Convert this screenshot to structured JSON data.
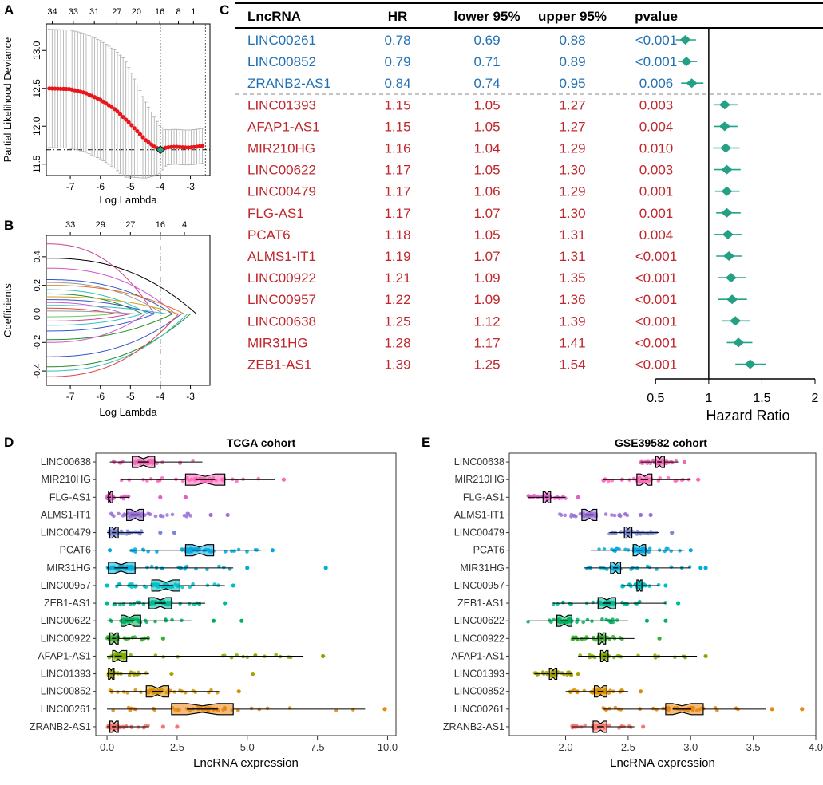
{
  "chart_data": [
    {
      "panel": "A",
      "type": "line",
      "panel_label": "A",
      "xlabel": "Log Lambda",
      "ylabel": "Partial Likelihood Deviance",
      "xlim": [
        -7.8,
        -2.35
      ],
      "ylim": [
        11.35,
        13.35
      ],
      "xticks": [
        -7,
        -6,
        -5,
        -4,
        -3
      ],
      "yticks": [
        11.5,
        12.0,
        12.5,
        13.0
      ],
      "top_ticks": [
        {
          "x": -7.6,
          "label": "34"
        },
        {
          "x": -6.9,
          "label": "33"
        },
        {
          "x": -6.2,
          "label": "31"
        },
        {
          "x": -5.45,
          "label": "27"
        },
        {
          "x": -4.8,
          "label": "20"
        },
        {
          "x": -4.02,
          "label": "16"
        },
        {
          "x": -3.4,
          "label": "8"
        },
        {
          "x": -2.9,
          "label": "1"
        }
      ],
      "vlines": [
        -4.0,
        -2.5
      ],
      "hline": 11.69,
      "optimum": {
        "x": -4.0,
        "y": 11.69
      },
      "curve": [
        [
          -7.75,
          12.5
        ],
        [
          -7.0,
          12.49
        ],
        [
          -6.5,
          12.44
        ],
        [
          -6.0,
          12.35
        ],
        [
          -5.5,
          12.22
        ],
        [
          -5.0,
          12.03
        ],
        [
          -4.5,
          11.82
        ],
        [
          -4.2,
          11.73
        ],
        [
          -4.0,
          11.69
        ],
        [
          -3.8,
          11.72
        ],
        [
          -3.5,
          11.73
        ],
        [
          -3.2,
          11.72
        ],
        [
          -3.0,
          11.72
        ],
        [
          -2.6,
          11.74
        ]
      ]
    },
    {
      "panel": "B",
      "type": "line",
      "panel_label": "B",
      "xlabel": "Log Lambda",
      "ylabel": "Coefficients",
      "xlim": [
        -7.8,
        -2.35
      ],
      "ylim": [
        -0.5,
        0.55
      ],
      "xticks": [
        -7,
        -6,
        -5,
        -4,
        -3
      ],
      "yticks": [
        -0.4,
        -0.2,
        0.0,
        0.2,
        0.4
      ],
      "top_ticks": [
        {
          "x": -7.0,
          "label": "33"
        },
        {
          "x": -6.0,
          "label": "29"
        },
        {
          "x": -5.0,
          "label": "27"
        },
        {
          "x": -4.0,
          "label": "16"
        },
        {
          "x": -3.2,
          "label": "4"
        }
      ],
      "vline": -4.0,
      "series": [
        {
          "start": 0.49,
          "end": -4.2,
          "color": "#d04090"
        },
        {
          "start": 0.39,
          "end": -2.8,
          "color": "#000000"
        },
        {
          "start": 0.32,
          "end": -3.5,
          "color": "#cc55cc"
        },
        {
          "start": 0.24,
          "end": -3.6,
          "color": "#3355cc"
        },
        {
          "start": 0.22,
          "end": -3.9,
          "color": "#999999"
        },
        {
          "start": 0.2,
          "end": -3.2,
          "color": "#e07020"
        },
        {
          "start": 0.17,
          "end": -4.4,
          "color": "#30c0c0"
        },
        {
          "start": 0.14,
          "end": -4.6,
          "color": "#228b22"
        },
        {
          "start": 0.12,
          "end": -3.4,
          "color": "#d4a020"
        },
        {
          "start": 0.1,
          "end": -4.2,
          "color": "#3355cc"
        },
        {
          "start": 0.08,
          "end": -5.2,
          "color": "#cc55cc"
        },
        {
          "start": 0.06,
          "end": -3.8,
          "color": "#30c0c0"
        },
        {
          "start": 0.04,
          "end": -5.5,
          "color": "#e04040"
        },
        {
          "start": 0.02,
          "end": -4.8,
          "color": "#999999"
        },
        {
          "start": -0.02,
          "end": -5.6,
          "color": "#66cc66"
        },
        {
          "start": -0.05,
          "end": -5.0,
          "color": "#d04090"
        },
        {
          "start": -0.08,
          "end": -4.6,
          "color": "#30c0c0"
        },
        {
          "start": -0.12,
          "end": -4.2,
          "color": "#3355cc"
        },
        {
          "start": -0.18,
          "end": -3.6,
          "color": "#228b22"
        },
        {
          "start": -0.2,
          "end": -4.5,
          "color": "#cc55cc"
        },
        {
          "start": -0.3,
          "end": -3.3,
          "color": "#3355cc"
        },
        {
          "start": -0.37,
          "end": -3.0,
          "color": "#228b22"
        },
        {
          "start": -0.4,
          "end": -3.1,
          "color": "#30c0c0"
        },
        {
          "start": -0.44,
          "end": -3.4,
          "color": "#e04040"
        }
      ]
    },
    {
      "panel": "C",
      "type": "table",
      "panel_label": "C",
      "headers": [
        "LncRNA",
        "HR",
        "lower 95%",
        "upper 95%",
        "pvalue"
      ],
      "xlabel": "Hazard Ratio",
      "xlim": [
        0.4,
        2.0
      ],
      "xticks": [
        0.5,
        1,
        1.5,
        2
      ],
      "ref_line": 1,
      "rows": [
        {
          "name": "LINC00261",
          "hr": 0.78,
          "lo": 0.69,
          "hi": 0.88,
          "p": "<0.001",
          "color": "#2070b4"
        },
        {
          "name": "LINC00852",
          "hr": 0.79,
          "lo": 0.71,
          "hi": 0.89,
          "p": "<0.001",
          "color": "#2070b4"
        },
        {
          "name": "ZRANB2-AS1",
          "hr": 0.84,
          "lo": 0.74,
          "hi": 0.95,
          "p": "0.006",
          "color": "#2070b4"
        },
        {
          "name": "LINC01393",
          "hr": 1.15,
          "lo": 1.05,
          "hi": 1.27,
          "p": "0.003",
          "color": "#c0272d"
        },
        {
          "name": "AFAP1-AS1",
          "hr": 1.15,
          "lo": 1.05,
          "hi": 1.27,
          "p": "0.004",
          "color": "#c0272d"
        },
        {
          "name": "MIR210HG",
          "hr": 1.16,
          "lo": 1.04,
          "hi": 1.29,
          "p": "0.010",
          "color": "#c0272d"
        },
        {
          "name": "LINC00622",
          "hr": 1.17,
          "lo": 1.05,
          "hi": 1.3,
          "p": "0.003",
          "color": "#c0272d"
        },
        {
          "name": "LINC00479",
          "hr": 1.17,
          "lo": 1.06,
          "hi": 1.29,
          "p": "0.001",
          "color": "#c0272d"
        },
        {
          "name": "FLG-AS1",
          "hr": 1.17,
          "lo": 1.07,
          "hi": 1.3,
          "p": "0.001",
          "color": "#c0272d"
        },
        {
          "name": "PCAT6",
          "hr": 1.18,
          "lo": 1.05,
          "hi": 1.31,
          "p": "0.004",
          "color": "#c0272d"
        },
        {
          "name": "ALMS1-IT1",
          "hr": 1.19,
          "lo": 1.07,
          "hi": 1.31,
          "p": "<0.001",
          "color": "#c0272d"
        },
        {
          "name": "LINC00922",
          "hr": 1.21,
          "lo": 1.09,
          "hi": 1.35,
          "p": "<0.001",
          "color": "#c0272d"
        },
        {
          "name": "LINC00957",
          "hr": 1.22,
          "lo": 1.09,
          "hi": 1.36,
          "p": "<0.001",
          "color": "#c0272d"
        },
        {
          "name": "LINC00638",
          "hr": 1.25,
          "lo": 1.12,
          "hi": 1.39,
          "p": "<0.001",
          "color": "#c0272d"
        },
        {
          "name": "MIR31HG",
          "hr": 1.28,
          "lo": 1.17,
          "hi": 1.41,
          "p": "<0.001",
          "color": "#c0272d"
        },
        {
          "name": "ZEB1-AS1",
          "hr": 1.39,
          "lo": 1.25,
          "hi": 1.54,
          "p": "<0.001",
          "color": "#c0272d"
        }
      ]
    },
    {
      "panel": "D",
      "type": "box",
      "panel_label": "D",
      "title": "TCGA cohort",
      "xlabel": "LncRNA expression",
      "xlim": [
        -0.4,
        10.3
      ],
      "xticks": [
        0.0,
        2.5,
        5.0,
        7.5,
        10.0
      ],
      "tick_labels": [
        "0.0",
        "2.5",
        "5.0",
        "7.5",
        "10.0"
      ],
      "rows": [
        {
          "name": "LINC00638",
          "color": "#f06ab4",
          "q1": 0.9,
          "med": 1.3,
          "q3": 1.7,
          "min": 0.1,
          "max": 3.4,
          "out": []
        },
        {
          "name": "MIR210HG",
          "color": "#ff68b8",
          "q1": 2.8,
          "med": 3.5,
          "q3": 4.2,
          "min": 0.5,
          "max": 6.0,
          "out": [
            6.3
          ]
        },
        {
          "name": "FLG-AS1",
          "color": "#e060c8",
          "q1": 0.05,
          "med": 0.1,
          "q3": 0.2,
          "min": 0.0,
          "max": 0.8,
          "out": [
            1.9,
            2.8
          ]
        },
        {
          "name": "ALMS1-IT1",
          "color": "#9a72d6",
          "q1": 0.7,
          "med": 1.0,
          "q3": 1.3,
          "min": 0.1,
          "max": 3.0,
          "out": [
            3.7,
            4.3
          ]
        },
        {
          "name": "LINC00479",
          "color": "#7a88d8",
          "q1": 0.1,
          "med": 0.25,
          "q3": 0.4,
          "min": 0.0,
          "max": 1.3,
          "out": [
            1.9,
            2.4
          ]
        },
        {
          "name": "PCAT6",
          "color": "#00a9e0",
          "q1": 2.8,
          "med": 3.3,
          "q3": 3.8,
          "min": 0.8,
          "max": 5.5,
          "out": [
            0.1,
            5.9
          ]
        },
        {
          "name": "MIR31HG",
          "color": "#00b0d8",
          "q1": 0.05,
          "med": 0.5,
          "q3": 1.0,
          "min": 0.0,
          "max": 4.5,
          "out": [
            5.0,
            7.8
          ]
        },
        {
          "name": "LINC00957",
          "color": "#00bfc4",
          "q1": 1.6,
          "med": 2.1,
          "q3": 2.6,
          "min": 0.3,
          "max": 4.2,
          "out": [
            0.0,
            4.5
          ]
        },
        {
          "name": "ZEB1-AS1",
          "color": "#00b898",
          "q1": 1.5,
          "med": 1.9,
          "q3": 2.3,
          "min": 0.2,
          "max": 3.5,
          "out": [
            0.0,
            4.2
          ]
        },
        {
          "name": "LINC00622",
          "color": "#00b060",
          "q1": 0.5,
          "med": 0.8,
          "q3": 1.2,
          "min": 0.0,
          "max": 3.0,
          "out": [
            3.8,
            4.8
          ]
        },
        {
          "name": "LINC00922",
          "color": "#38b030",
          "q1": 0.1,
          "med": 0.25,
          "q3": 0.4,
          "min": 0.0,
          "max": 1.5,
          "out": [
            2.0
          ]
        },
        {
          "name": "AFAP1-AS1",
          "color": "#7cae00",
          "q1": 0.2,
          "med": 0.4,
          "q3": 0.7,
          "min": 0.0,
          "max": 7.0,
          "out": [
            7.7
          ]
        },
        {
          "name": "LINC01393",
          "color": "#a3a500",
          "q1": 0.05,
          "med": 0.15,
          "q3": 0.25,
          "min": 0.0,
          "max": 1.5,
          "out": [
            2.3,
            5.2
          ]
        },
        {
          "name": "LINC00852",
          "color": "#d89000",
          "q1": 1.4,
          "med": 1.8,
          "q3": 2.2,
          "min": 0.1,
          "max": 4.0,
          "out": [
            4.7
          ]
        },
        {
          "name": "LINC00261",
          "color": "#e88610",
          "q1": 2.3,
          "med": 3.4,
          "q3": 4.5,
          "min": 0.0,
          "max": 9.2,
          "out": [
            9.9
          ]
        },
        {
          "name": "ZRANB2-AS1",
          "color": "#f8766d",
          "q1": 0.1,
          "med": 0.25,
          "q3": 0.4,
          "min": 0.0,
          "max": 1.5,
          "out": [
            2.0,
            2.5
          ]
        }
      ]
    },
    {
      "panel": "E",
      "type": "box",
      "panel_label": "E",
      "title": "GSE39582 cohort",
      "xlabel": "LncRNA expression",
      "xlim": [
        1.55,
        4.0
      ],
      "xticks": [
        2.0,
        2.5,
        3.0,
        3.5,
        4.0
      ],
      "tick_labels": [
        "2.0",
        "2.5",
        "3.0",
        "3.5",
        "4.0"
      ],
      "rows": [
        {
          "name": "LINC00638",
          "color": "#f06ab4",
          "q1": 2.72,
          "med": 2.75,
          "q3": 2.79,
          "min": 2.6,
          "max": 2.9,
          "out": [
            2.95
          ]
        },
        {
          "name": "MIR210HG",
          "color": "#ff68b8",
          "q1": 2.57,
          "med": 2.63,
          "q3": 2.69,
          "min": 2.3,
          "max": 3.0,
          "out": [
            3.06
          ]
        },
        {
          "name": "FLG-AS1",
          "color": "#e060c8",
          "q1": 1.82,
          "med": 1.85,
          "q3": 1.88,
          "min": 1.7,
          "max": 2.0,
          "out": [
            2.1
          ]
        },
        {
          "name": "ALMS1-IT1",
          "color": "#9a72d6",
          "q1": 2.13,
          "med": 2.19,
          "q3": 2.25,
          "min": 1.95,
          "max": 2.5,
          "out": [
            2.6,
            2.68
          ]
        },
        {
          "name": "LINC00479",
          "color": "#7a88d8",
          "q1": 2.47,
          "med": 2.5,
          "q3": 2.53,
          "min": 2.35,
          "max": 2.75,
          "out": [
            2.85
          ]
        },
        {
          "name": "PCAT6",
          "color": "#00a9e0",
          "q1": 2.54,
          "med": 2.59,
          "q3": 2.64,
          "min": 2.2,
          "max": 2.95,
          "out": [
            3.0
          ]
        },
        {
          "name": "MIR31HG",
          "color": "#00b0d8",
          "q1": 2.36,
          "med": 2.4,
          "q3": 2.44,
          "min": 2.15,
          "max": 3.0,
          "out": [
            3.08,
            3.12
          ]
        },
        {
          "name": "LINC00957",
          "color": "#00bfc4",
          "q1": 2.57,
          "med": 2.59,
          "q3": 2.61,
          "min": 2.45,
          "max": 2.75,
          "out": [
            2.8
          ]
        },
        {
          "name": "ZEB1-AS1",
          "color": "#00b898",
          "q1": 2.26,
          "med": 2.33,
          "q3": 2.4,
          "min": 1.9,
          "max": 2.8,
          "out": [
            2.9
          ]
        },
        {
          "name": "LINC00622",
          "color": "#00b060",
          "q1": 1.93,
          "med": 1.99,
          "q3": 2.05,
          "min": 1.7,
          "max": 2.5,
          "out": [
            2.65,
            2.8
          ]
        },
        {
          "name": "LINC00922",
          "color": "#38b030",
          "q1": 2.26,
          "med": 2.29,
          "q3": 2.32,
          "min": 2.05,
          "max": 2.55,
          "out": [
            2.75
          ]
        },
        {
          "name": "AFAP1-AS1",
          "color": "#7cae00",
          "q1": 2.28,
          "med": 2.31,
          "q3": 2.34,
          "min": 2.1,
          "max": 3.05,
          "out": [
            3.12
          ]
        },
        {
          "name": "LINC01393",
          "color": "#a3a500",
          "q1": 1.87,
          "med": 1.9,
          "q3": 1.93,
          "min": 1.75,
          "max": 2.05,
          "out": [
            2.1
          ]
        },
        {
          "name": "LINC00852",
          "color": "#d89000",
          "q1": 2.23,
          "med": 2.28,
          "q3": 2.33,
          "min": 2.0,
          "max": 2.5,
          "out": [
            2.6
          ]
        },
        {
          "name": "LINC00261",
          "color": "#e88610",
          "q1": 2.8,
          "med": 2.93,
          "q3": 3.1,
          "min": 2.3,
          "max": 3.6,
          "out": [
            3.65,
            3.89
          ]
        },
        {
          "name": "ZRANB2-AS1",
          "color": "#f8766d",
          "q1": 2.22,
          "med": 2.28,
          "q3": 2.33,
          "min": 2.05,
          "max": 2.55,
          "out": [
            2.62
          ]
        }
      ]
    }
  ]
}
